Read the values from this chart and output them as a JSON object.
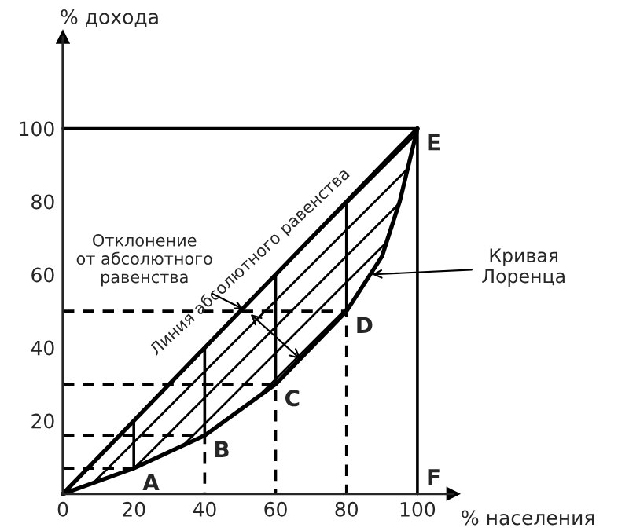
{
  "chart_data": {
    "type": "line",
    "xlabel": "% населения",
    "ylabel": "% дохода",
    "xlim": [
      0,
      110
    ],
    "ylim": [
      0,
      125
    ],
    "xticks": [
      0,
      20,
      40,
      60,
      80,
      100
    ],
    "yticks": [
      20,
      40,
      60,
      80,
      100
    ],
    "grid": false,
    "legend": false,
    "marker": "none",
    "series": [
      {
        "color": "#000000",
        "x": [
          0,
          100
        ],
        "values": [
          0,
          100
        ]
      },
      {
        "color": "#000000",
        "x": [
          0,
          20,
          40,
          60,
          80,
          90,
          95,
          100
        ],
        "values": [
          0,
          7,
          16,
          30,
          50,
          65,
          80,
          100
        ]
      },
      {
        "color": "#000000",
        "x": [
          0,
          100,
          100
        ],
        "values": [
          100,
          100,
          0
        ]
      },
      {
        "color": "#000000",
        "x": [
          20,
          20
        ],
        "values": [
          7,
          20
        ]
      },
      {
        "color": "#000000",
        "x": [
          40,
          40
        ],
        "values": [
          16,
          40
        ]
      },
      {
        "color": "#000000",
        "x": [
          60,
          60
        ],
        "values": [
          30,
          60
        ]
      },
      {
        "color": "#000000",
        "x": [
          80,
          80
        ],
        "values": [
          50,
          80
        ]
      },
      {
        "color": "#000000",
        "line_style": "dashed",
        "x": [
          0,
          20
        ],
        "values": [
          7,
          7
        ]
      },
      {
        "color": "#000000",
        "line_style": "dashed",
        "x": [
          0,
          40,
          40
        ],
        "values": [
          16,
          16,
          0
        ]
      },
      {
        "color": "#000000",
        "line_style": "dashed",
        "x": [
          0,
          60,
          60
        ],
        "values": [
          30,
          30,
          0
        ]
      },
      {
        "color": "#000000",
        "line_style": "dashed",
        "x": [
          0,
          80,
          80
        ],
        "values": [
          50,
          50,
          0
        ]
      }
    ],
    "annotations": [
      {
        "text": "A",
        "x": 20,
        "y": 7
      },
      {
        "text": "B",
        "x": 40,
        "y": 16
      },
      {
        "text": "C",
        "x": 60,
        "y": 30
      },
      {
        "text": "D",
        "x": 80,
        "y": 50
      },
      {
        "text": "E",
        "x": 100,
        "y": 100
      },
      {
        "text": "F",
        "x": 100,
        "y": 0
      },
      {
        "text": "Отклонение\nот абсолютного\nравенства",
        "x": 52,
        "y": 50
      },
      "Линия абсолютного равенства",
      {
        "text": "Кривая\nЛоренца",
        "x": 86,
        "y": 60
      }
    ]
  }
}
